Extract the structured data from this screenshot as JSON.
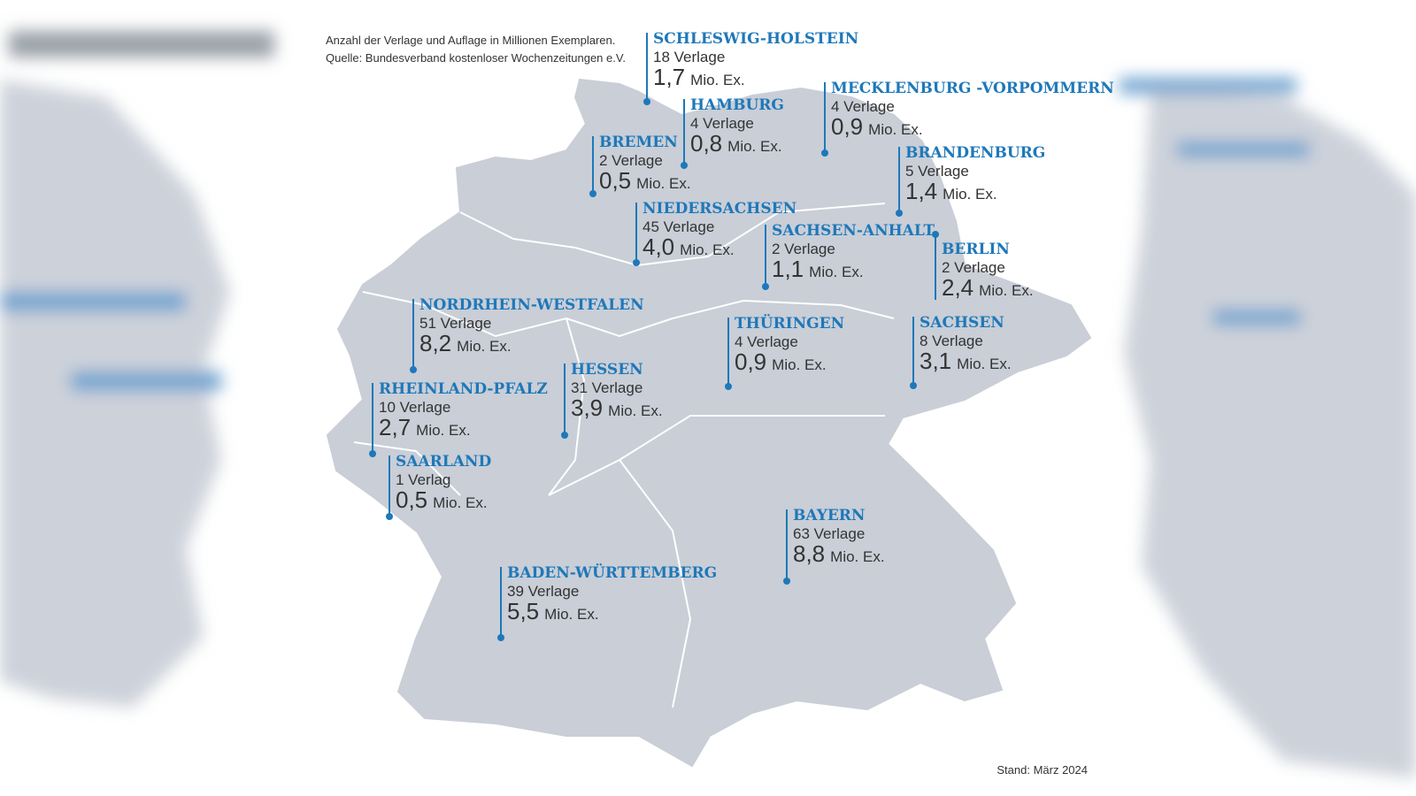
{
  "header": {
    "subtitle": "Anzahl der Verlage und Auflage in Millionen Exemplaren.",
    "source": "Quelle: Bundesverband kostenloser Wochenzeitungen e.V."
  },
  "regions": [
    {
      "name": "SCHLESWIG-HOLSTEIN",
      "publishers": "18 Verlage",
      "circulation": "1,7",
      "unit": "Mio. Ex."
    },
    {
      "name": "HAMBURG",
      "publishers": "4 Verlage",
      "circulation": "0,8",
      "unit": "Mio. Ex."
    },
    {
      "name": "MECKLENBURG -VORPOMMERN",
      "publishers": "4 Verlage",
      "circulation": "0,9",
      "unit": "Mio. Ex."
    },
    {
      "name": "BREMEN",
      "publishers": "2 Verlage",
      "circulation": "0,5",
      "unit": "Mio. Ex."
    },
    {
      "name": "BRANDENBURG",
      "publishers": "5 Verlage",
      "circulation": "1,4",
      "unit": "Mio. Ex."
    },
    {
      "name": "NIEDERSACHSEN",
      "publishers": "45 Verlage",
      "circulation": "4,0",
      "unit": "Mio. Ex."
    },
    {
      "name": "SACHSEN-ANHALT",
      "publishers": "2 Verlage",
      "circulation": "1,1",
      "unit": "Mio. Ex."
    },
    {
      "name": "BERLIN",
      "publishers": "2 Verlage",
      "circulation": "2,4",
      "unit": "Mio. Ex."
    },
    {
      "name": "NORDRHEIN-WESTFALEN",
      "publishers": "51 Verlage",
      "circulation": "8,2",
      "unit": "Mio. Ex."
    },
    {
      "name": "THÜRINGEN",
      "publishers": "4 Verlage",
      "circulation": "0,9",
      "unit": "Mio. Ex."
    },
    {
      "name": "SACHSEN",
      "publishers": "8 Verlage",
      "circulation": "3,1",
      "unit": "Mio. Ex."
    },
    {
      "name": "HESSEN",
      "publishers": "31 Verlage",
      "circulation": "3,9",
      "unit": "Mio. Ex."
    },
    {
      "name": "RHEINLAND-PFALZ",
      "publishers": "10 Verlage",
      "circulation": "2,7",
      "unit": "Mio. Ex."
    },
    {
      "name": "SAARLAND",
      "publishers": "1 Verlag",
      "circulation": "0,5",
      "unit": "Mio. Ex."
    },
    {
      "name": "BAYERN",
      "publishers": "63 Verlage",
      "circulation": "8,8",
      "unit": "Mio. Ex."
    },
    {
      "name": "BADEN-WÜRTTEMBERG",
      "publishers": "39 Verlage",
      "circulation": "5,5",
      "unit": "Mio. Ex."
    }
  ],
  "footer": {
    "date": "Stand: März 2024"
  }
}
